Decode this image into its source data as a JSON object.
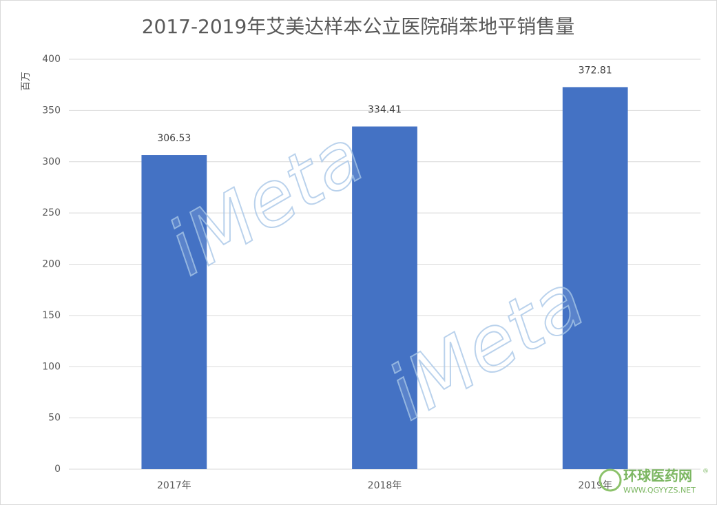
{
  "chart_data": {
    "type": "bar",
    "title": "2017-2019年艾美达样本公立医院硝苯地平销售量",
    "y_label": "百万",
    "categories": [
      "2017年",
      "2018年",
      "2019年"
    ],
    "values": [
      306.53,
      334.41,
      372.81
    ],
    "color": "#4472c4",
    "ylim": [
      0,
      400
    ],
    "yticks": [
      0,
      50,
      100,
      150,
      200,
      250,
      300,
      350,
      400
    ],
    "grid": true
  },
  "watermarks": [
    "iMeta",
    "iMeta"
  ],
  "logo": {
    "name": "环球医药网",
    "mark": "®",
    "url": "WWW.QGYYZS.NET"
  }
}
